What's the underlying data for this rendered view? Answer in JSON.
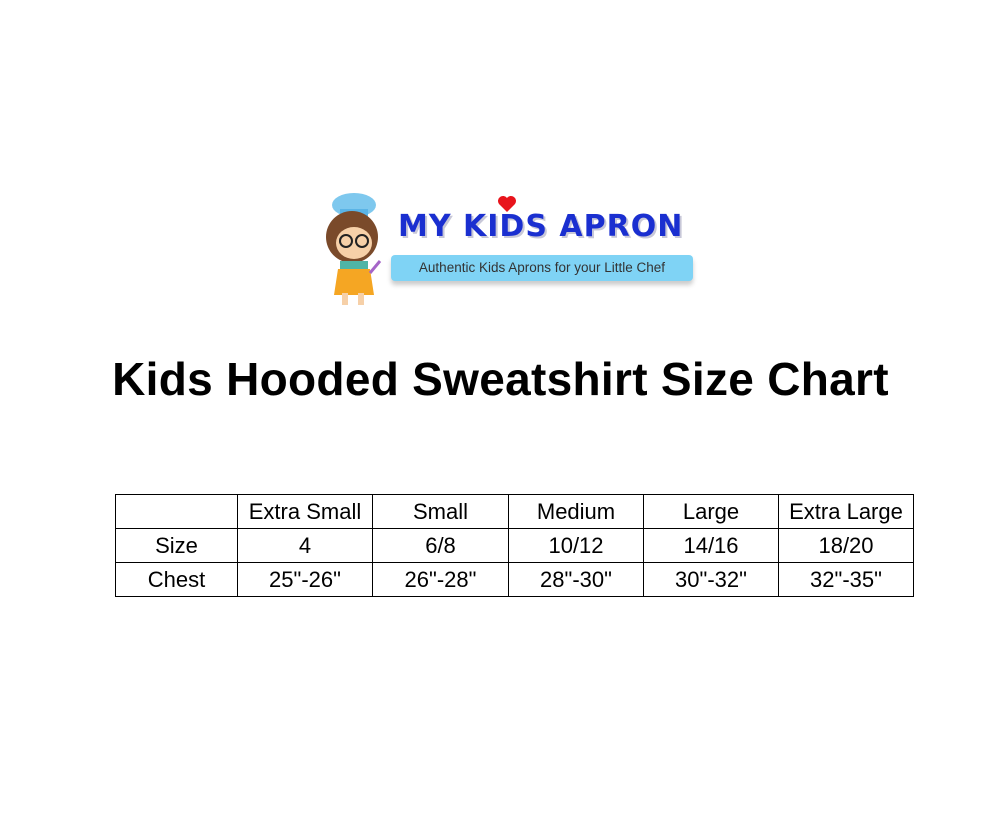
{
  "logo": {
    "brand": "MY KIDS APRON",
    "tagline": "Authentic Kids Aprons for your Little Chef",
    "colors": {
      "brand": "#1a2fd0",
      "heart": "#e8141c",
      "tagline_bg": "#7fd3f5"
    }
  },
  "title": "Kids Hooded Sweatshirt Size Chart",
  "table": {
    "headers": [
      "",
      "Extra Small",
      "Small",
      "Medium",
      "Large",
      "Extra Large"
    ],
    "rows": [
      [
        "Size",
        "4",
        "6/8",
        "10/12",
        "14/16",
        "18/20"
      ],
      [
        "Chest",
        "25\"-26\"",
        "26\"-28\"",
        "28\"-30\"",
        "30\"-32\"",
        "32\"-35\""
      ]
    ]
  }
}
